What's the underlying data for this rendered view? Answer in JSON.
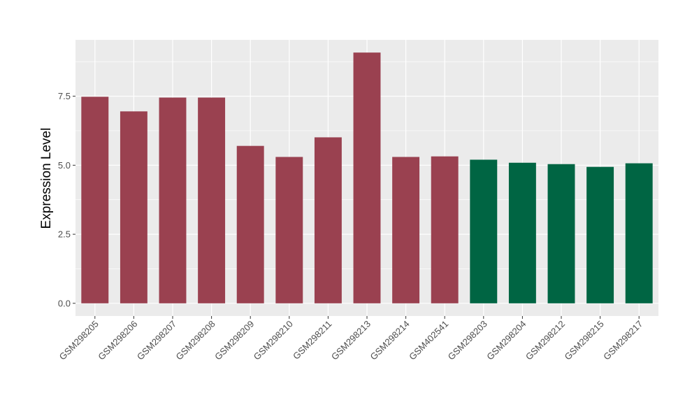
{
  "chart_data": {
    "type": "bar",
    "title": "",
    "xlabel": "",
    "ylabel": "Expression Level",
    "ylim": [
      -0.46,
      9.54
    ],
    "yticks": [
      "0.0",
      "2.5",
      "5.0",
      "7.5"
    ],
    "ytick_values": [
      0,
      2.5,
      5,
      7.5
    ],
    "grid": true,
    "categories": [
      "GSM298205",
      "GSM298206",
      "GSM298207",
      "GSM298208",
      "GSM298209",
      "GSM298210",
      "GSM298211",
      "GSM298213",
      "GSM298214",
      "GSM402541",
      "GSM298203",
      "GSM298204",
      "GSM298212",
      "GSM298215",
      "GSM298217"
    ],
    "values": [
      7.48,
      6.95,
      7.45,
      7.45,
      5.7,
      5.3,
      6.01,
      9.08,
      5.3,
      5.32,
      5.2,
      5.09,
      5.04,
      4.94,
      5.07
    ],
    "groups": [
      "a",
      "a",
      "a",
      "a",
      "a",
      "a",
      "a",
      "a",
      "a",
      "a",
      "b",
      "b",
      "b",
      "b",
      "b"
    ],
    "colors": {
      "a": "#9A4150",
      "b": "#006543",
      "panel": "#EBEBEB",
      "grid": "#FFFFFF"
    }
  }
}
